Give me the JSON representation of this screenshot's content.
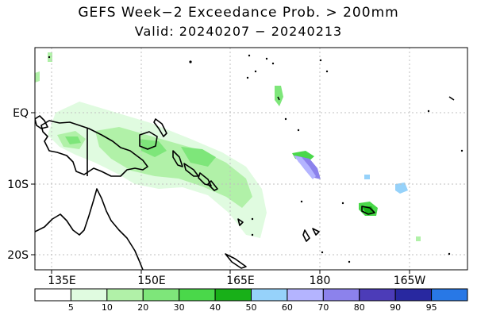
{
  "title": "GEFS Week−2 Exceedance Prob. > 200mm",
  "subtitle": "Valid: 20240207 − 20240213",
  "lat_labels": [
    "EQ",
    "10S",
    "20S"
  ],
  "lon_labels": [
    "135E",
    "150E",
    "165E",
    "180",
    "165W"
  ],
  "legend": {
    "thresholds": [
      "5",
      "10",
      "20",
      "30",
      "40",
      "50",
      "60",
      "70",
      "80",
      "90",
      "95"
    ],
    "colors": [
      "#ffffff",
      "#e0fbe0",
      "#b1f1a8",
      "#7ee67a",
      "#4ad84a",
      "#18b018",
      "#96d2fa",
      "#b4b4ff",
      "#8c82ec",
      "#4c3cb8",
      "#2828a0",
      "#2878e6"
    ]
  },
  "chart_data": {
    "type": "map",
    "title": "GEFS Week−2 Exceedance Prob. > 200mm",
    "subtitle": "Valid: 20240207 − 20240213",
    "lon_range": [
      130,
      210
    ],
    "lat_range": [
      -22,
      9
    ],
    "gridlines": true,
    "gridline_lats": [
      0,
      -10,
      -20
    ],
    "gridline_lons": [
      135,
      150,
      165,
      180,
      195
    ]
  }
}
